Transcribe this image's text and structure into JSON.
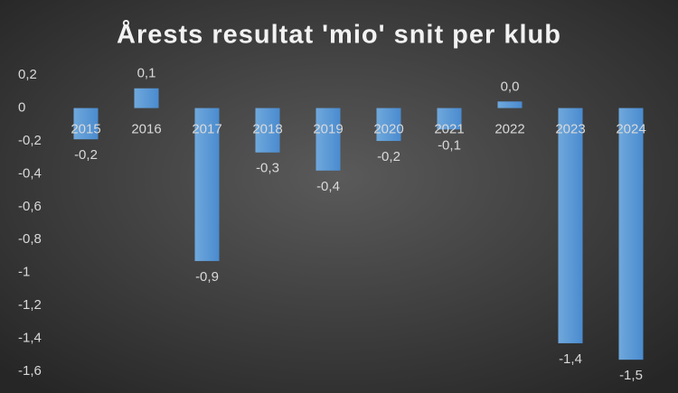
{
  "chart_data": {
    "type": "bar",
    "title": "Årests resultat 'mio' snit per klub",
    "categories": [
      "2015",
      "2016",
      "2017",
      "2018",
      "2019",
      "2020",
      "2021",
      "2022",
      "2023",
      "2024"
    ],
    "values": [
      -0.19,
      0.12,
      -0.93,
      -0.27,
      -0.38,
      -0.2,
      -0.13,
      0.04,
      -1.43,
      -1.53
    ],
    "value_labels": [
      "-0,2",
      "0,1",
      "-0,9",
      "-0,3",
      "-0,4",
      "-0,2",
      "-0,1",
      "0,0",
      "-1,4",
      "-1,5"
    ],
    "color": "#5b9bd5",
    "ylim": [
      -1.65,
      0.3
    ],
    "yticks": [
      {
        "value": 0.2,
        "label": "0,2"
      },
      0,
      {
        "value": -0.2,
        "label": "-0,2"
      },
      {
        "value": -0.4,
        "label": "-0,4"
      },
      {
        "value": -0.6,
        "label": "-0,6"
      },
      {
        "value": -0.8,
        "label": "-0,8"
      },
      -1,
      {
        "value": -1.2,
        "label": "-1,2"
      },
      {
        "value": -1.4,
        "label": "-1,4"
      },
      {
        "value": -1.6,
        "label": "-1,6"
      }
    ],
    "grid": false
  }
}
